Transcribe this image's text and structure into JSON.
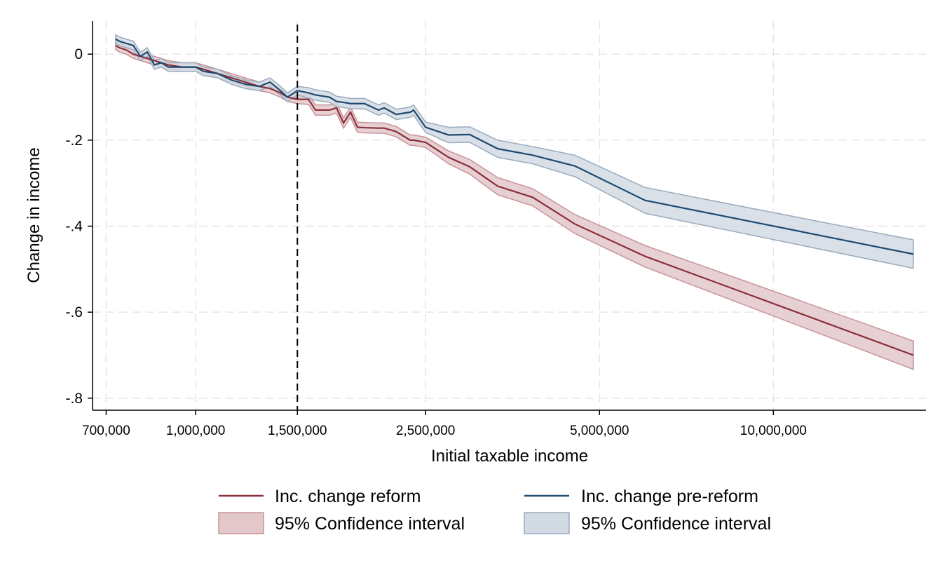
{
  "chart_data": {
    "type": "line",
    "xlabel": "Initial taxable income",
    "ylabel": "Change in income",
    "xscale": "log",
    "xlim": [
      663000,
      18370000
    ],
    "ylim": [
      -0.828,
      0.077
    ],
    "grid": true,
    "legend_placement": "bottom",
    "xticks": [
      700000,
      1000000,
      1500000,
      2500000,
      5000000,
      10000000
    ],
    "xtick_labels": [
      "700,000",
      "1,000,000",
      "1,500,000",
      "2,500,000",
      "5,000,000",
      "10,000,000"
    ],
    "yticks": [
      0,
      -0.2,
      -0.4,
      -0.6,
      -0.8
    ],
    "ytick_labels": [
      "0",
      "-.2",
      "-.4",
      "-.6",
      "-.8"
    ],
    "reference_line": {
      "x": 1500000,
      "style": "dashed",
      "color": "#000000"
    },
    "x": [
      727000,
      738000,
      758000,
      780000,
      802000,
      825000,
      848000,
      872000,
      897000,
      948000,
      1000000,
      1031000,
      1091000,
      1153000,
      1219000,
      1289000,
      1345000,
      1402000,
      1442000,
      1500000,
      1568000,
      1612000,
      1705000,
      1753000,
      1803000,
      1854000,
      1906000,
      1960000,
      2073000,
      2120000,
      2223000,
      2351000,
      2384000,
      2500000,
      2741000,
      2981000,
      3333000,
      3833000,
      4533000,
      5995000,
      17470000
    ],
    "series": [
      {
        "name": "Inc. change reform",
        "ci_name": "95% Confidence interval",
        "color": "#8b2e3a",
        "ci_fill": "#e3c8cb",
        "ci_edge": "#c99298",
        "values": [
          0.02,
          0.015,
          0.01,
          0,
          -0.005,
          -0.01,
          -0.015,
          -0.02,
          -0.025,
          -0.03,
          -0.03,
          -0.035,
          -0.045,
          -0.055,
          -0.065,
          -0.075,
          -0.08,
          -0.09,
          -0.1,
          -0.105,
          -0.105,
          -0.13,
          -0.13,
          -0.125,
          -0.16,
          -0.135,
          -0.17,
          -0.171,
          -0.172,
          -0.172,
          -0.18,
          -0.2,
          -0.2,
          -0.205,
          -0.24,
          -0.262,
          -0.307,
          -0.333,
          -0.395,
          -0.47,
          -0.7
        ],
        "ci_halfwidth": [
          0.01,
          0.01,
          0.01,
          0.01,
          0.01,
          0.01,
          0.01,
          0.01,
          0.01,
          0.01,
          0.01,
          0.01,
          0.01,
          0.01,
          0.01,
          0.01,
          0.01,
          0.01,
          0.01,
          0.01,
          0.012,
          0.012,
          0.012,
          0.012,
          0.012,
          0.012,
          0.012,
          0.012,
          0.012,
          0.012,
          0.012,
          0.012,
          0.012,
          0.012,
          0.015,
          0.017,
          0.02,
          0.02,
          0.022,
          0.025,
          0.033
        ]
      },
      {
        "name": "Inc. change pre-reform",
        "ci_name": "95% Confidence interval",
        "color": "#1f4a70",
        "ci_fill": "#d2dae3",
        "ci_edge": "#9aabbe",
        "values": [
          0.035,
          0.03,
          0.025,
          0.02,
          -0.005,
          0.005,
          -0.025,
          -0.02,
          -0.03,
          -0.03,
          -0.03,
          -0.04,
          -0.045,
          -0.06,
          -0.07,
          -0.075,
          -0.065,
          -0.085,
          -0.1,
          -0.085,
          -0.09,
          -0.095,
          -0.1,
          -0.11,
          -0.112,
          -0.115,
          -0.115,
          -0.115,
          -0.13,
          -0.125,
          -0.14,
          -0.135,
          -0.13,
          -0.17,
          -0.188,
          -0.187,
          -0.22,
          -0.235,
          -0.26,
          -0.34,
          -0.465
        ],
        "ci_halfwidth": [
          0.01,
          0.01,
          0.01,
          0.01,
          0.01,
          0.01,
          0.01,
          0.01,
          0.01,
          0.01,
          0.01,
          0.01,
          0.01,
          0.01,
          0.01,
          0.01,
          0.01,
          0.01,
          0.01,
          0.01,
          0.012,
          0.012,
          0.012,
          0.012,
          0.012,
          0.012,
          0.012,
          0.012,
          0.012,
          0.012,
          0.012,
          0.012,
          0.012,
          0.012,
          0.018,
          0.018,
          0.02,
          0.02,
          0.025,
          0.03,
          0.033
        ]
      }
    ]
  }
}
